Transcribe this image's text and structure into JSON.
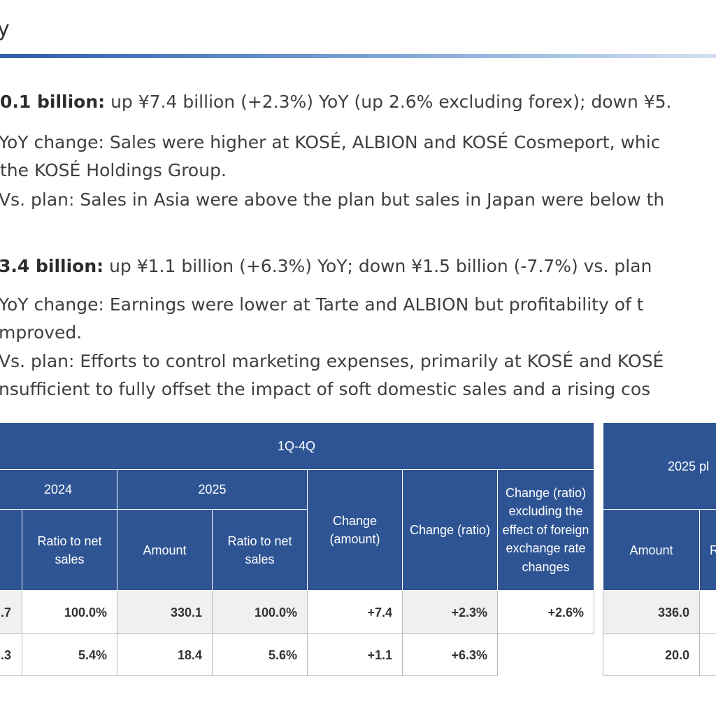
{
  "title_fragment": "y",
  "lines": {
    "sales_lead": "0.1 billion:",
    "sales_rest": " up ¥7.4 billion (+2.3%) YoY (up 2.6% excluding forex); down ¥5.",
    "sales_yoy_1": "YoY change: Sales were higher at KOSÉ, ALBION and KOSÉ Cosmeport, whic",
    "sales_yoy_2": "the KOSÉ Holdings Group.",
    "sales_plan_1": "Vs. plan: Sales in Asia were above the plan but sales in Japan were below th",
    "op_lead": "3.4 billion:",
    "op_rest": " up ¥1.1 billion (+6.3%) YoY; down ¥1.5 billion (-7.7%) vs. plan",
    "op_yoy_1": "YoY change: Earnings were lower at Tarte and ALBION but  profitability of t",
    "op_yoy_2": "mproved.",
    "op_plan_1": "Vs. plan: Efforts to control marketing expenses, primarily at KOSÉ and KOSÉ",
    "op_plan_2": "nsufficient to fully offset the impact of soft domestic sales and a rising cos"
  },
  "table_main": {
    "period": "1Q-4Q",
    "year_2024": "2024",
    "year_2025": "2025",
    "col_ratio_2024": "Ratio to net sales",
    "col_amount_2025": "Amount",
    "col_ratio_2025": "Ratio to net sales",
    "col_change_amount": "Change (amount)",
    "col_change_ratio": "Change (ratio)",
    "col_change_fx": "Change (ratio) excluding the effect of foreign exchange rate changes",
    "rows": [
      {
        "amount_2024": ".7",
        "ratio_2024": "100.0%",
        "amount_2025": "330.1",
        "ratio_2025": "100.0%",
        "change_amount": "+7.4",
        "change_ratio": "+2.3%",
        "change_fx": "+2.6%"
      },
      {
        "amount_2024": ".3",
        "ratio_2024": "5.4%",
        "amount_2025": "18.4",
        "ratio_2025": "5.6%",
        "change_amount": "+1.1",
        "change_ratio": "+6.3%",
        "change_fx": ""
      }
    ]
  },
  "table_plan": {
    "header": "2025 pl",
    "col_amount": "Amount",
    "col_ratio_frag": "R",
    "rows": [
      {
        "amount": "336.0"
      },
      {
        "amount": "20.0"
      }
    ]
  },
  "colors": {
    "header_blue": "#2e5494",
    "rule_blue": "#2f5ea8",
    "row_gray": "#f0f0f0"
  }
}
